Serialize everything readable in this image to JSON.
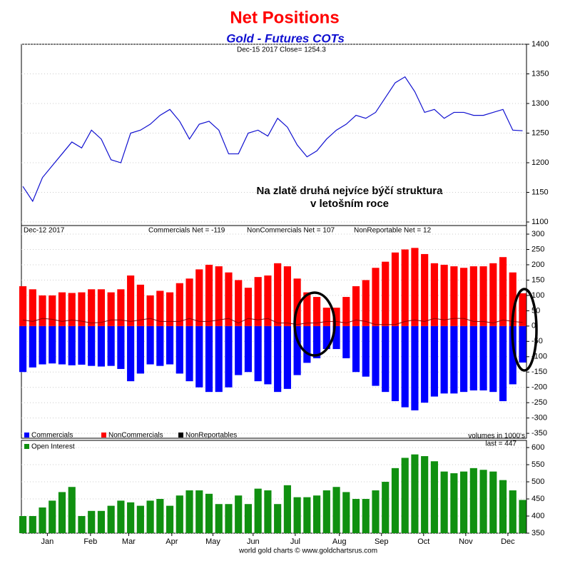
{
  "title": "Net Positions",
  "subtitle": "Gold - Futures COTs",
  "footer": "world gold charts © www.goldchartsrus.com",
  "chart_data": [
    {
      "type": "line",
      "header": "Dec-15 2017 Close= 1254.3",
      "annotation": [
        "Na zlatě druhá nejvíce býčí struktura",
        "v letošním roce"
      ],
      "color": "#1010d0",
      "xlim": [
        -0.15,
        51.4
      ],
      "ylim": [
        1094,
        1400
      ],
      "yticks": [
        1100,
        1150,
        1200,
        1250,
        1300,
        1350,
        1400
      ],
      "grid": true,
      "values": [
        1160,
        1135,
        1175,
        1195,
        1215,
        1235,
        1225,
        1255,
        1240,
        1205,
        1200,
        1250,
        1255,
        1265,
        1280,
        1290,
        1270,
        1240,
        1265,
        1270,
        1255,
        1215,
        1215,
        1250,
        1255,
        1245,
        1275,
        1260,
        1230,
        1210,
        1220,
        1240,
        1255,
        1265,
        1280,
        1275,
        1285,
        1310,
        1335,
        1345,
        1320,
        1285,
        1290,
        1275,
        1285,
        1285,
        1280,
        1280,
        1285,
        1290,
        1255,
        1254
      ]
    },
    {
      "type": "bar",
      "date": "Dec-12 2017",
      "net_labels": [
        "Commercials Net = -119",
        "NonCommercials Net = 107",
        "NonReportable Net = 12"
      ],
      "note": "volumes in 1000's",
      "xlim": [
        -0.15,
        51.4
      ],
      "ylim": [
        -366,
        328
      ],
      "yticks": [
        -350,
        -300,
        -250,
        -200,
        -150,
        -100,
        -50,
        0,
        50,
        100,
        150,
        200,
        250,
        300
      ],
      "grid": true,
      "series": [
        {
          "name": "Commercials",
          "color": "#0000ff",
          "values": [
            -150,
            -135,
            -125,
            -122,
            -125,
            -128,
            -126,
            -130,
            -132,
            -130,
            -140,
            -180,
            -155,
            -125,
            -130,
            -125,
            -155,
            -180,
            -200,
            -215,
            -215,
            -200,
            -160,
            -150,
            -180,
            -190,
            -215,
            -205,
            -160,
            -120,
            -105,
            -75,
            -75,
            -105,
            -150,
            -165,
            -195,
            -215,
            -245,
            -265,
            -275,
            -250,
            -230,
            -220,
            -220,
            -215,
            -210,
            -210,
            -215,
            -245,
            -190,
            -119
          ]
        },
        {
          "name": "NonCommercials",
          "color": "#ff0000",
          "values": [
            130,
            120,
            100,
            100,
            110,
            108,
            110,
            120,
            120,
            110,
            120,
            165,
            135,
            100,
            115,
            110,
            140,
            155,
            185,
            200,
            195,
            175,
            150,
            125,
            160,
            165,
            205,
            195,
            155,
            110,
            95,
            60,
            60,
            95,
            130,
            150,
            190,
            210,
            240,
            250,
            255,
            235,
            205,
            200,
            195,
            190,
            195,
            195,
            205,
            225,
            175,
            107
          ]
        },
        {
          "name": "NonReportables",
          "color": "#000000",
          "mark": "line",
          "values": [
            20,
            15,
            25,
            22,
            15,
            20,
            16,
            10,
            12,
            20,
            20,
            15,
            20,
            25,
            15,
            15,
            15,
            25,
            15,
            15,
            20,
            25,
            10,
            25,
            20,
            25,
            10,
            10,
            5,
            10,
            10,
            15,
            15,
            10,
            20,
            15,
            5,
            5,
            5,
            15,
            20,
            15,
            25,
            20,
            25,
            25,
            15,
            15,
            10,
            20,
            15,
            12
          ]
        }
      ]
    },
    {
      "type": "bar",
      "last_label": "last = 447",
      "xlim": [
        -0.15,
        51.4
      ],
      "ylim": [
        350,
        621
      ],
      "yticks": [
        350,
        400,
        450,
        500,
        550,
        600
      ],
      "grid": true,
      "xticks": [
        {
          "value": 2.5,
          "label": "Jan"
        },
        {
          "value": 6.9,
          "label": "Feb"
        },
        {
          "value": 10.8,
          "label": "Mar"
        },
        {
          "value": 15.2,
          "label": "Apr"
        },
        {
          "value": 19.4,
          "label": "May"
        },
        {
          "value": 23.5,
          "label": "Jun"
        },
        {
          "value": 27.8,
          "label": "Jul"
        },
        {
          "value": 32.3,
          "label": "Aug"
        },
        {
          "value": 36.6,
          "label": "Sep"
        },
        {
          "value": 40.9,
          "label": "Oct"
        },
        {
          "value": 45.2,
          "label": "Nov"
        },
        {
          "value": 49.5,
          "label": "Dec"
        }
      ],
      "series": [
        {
          "name": "Open Interest",
          "color": "#109010",
          "values": [
            400,
            400,
            425,
            445,
            470,
            485,
            400,
            415,
            415,
            430,
            445,
            440,
            430,
            445,
            450,
            430,
            460,
            475,
            475,
            465,
            435,
            435,
            460,
            435,
            480,
            475,
            435,
            490,
            455,
            455,
            460,
            475,
            485,
            470,
            450,
            450,
            475,
            500,
            540,
            570,
            580,
            575,
            560,
            530,
            525,
            530,
            540,
            535,
            530,
            505,
            475,
            447
          ]
        }
      ]
    }
  ]
}
